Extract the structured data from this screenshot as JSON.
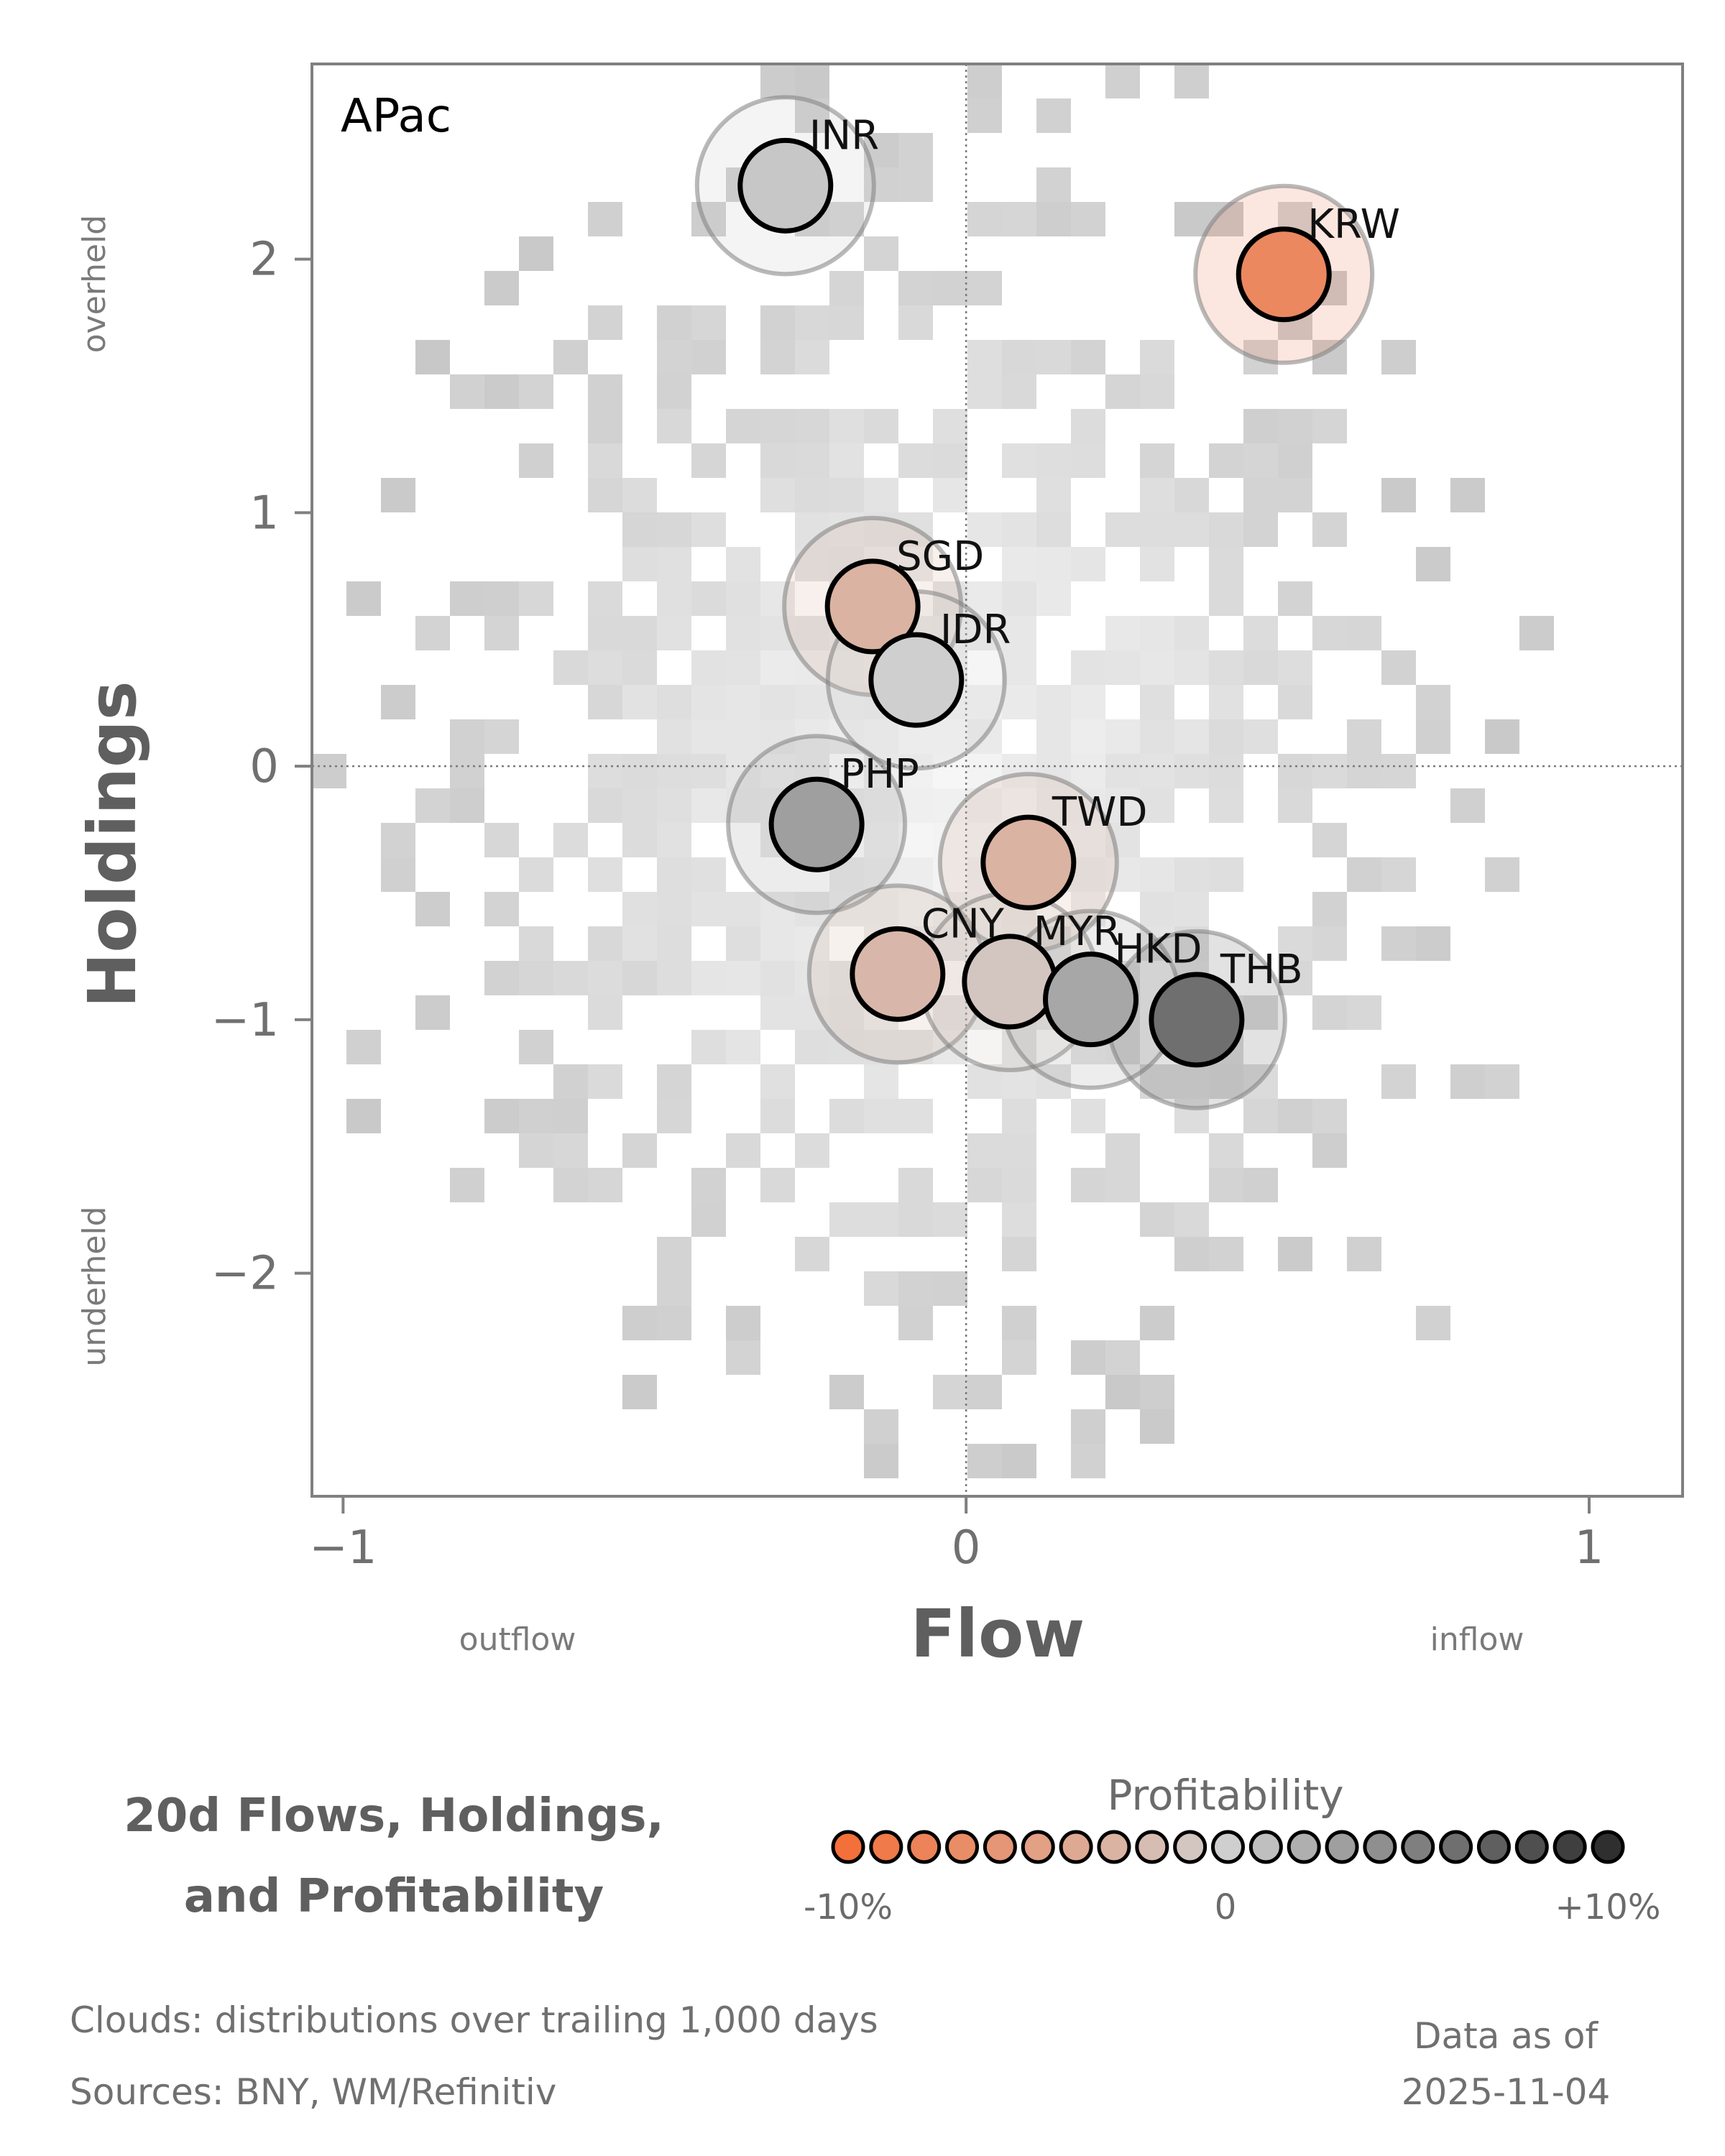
{
  "chart_data": {
    "type": "scatter",
    "region_label": "APac",
    "xlabel": "Flow",
    "ylabel": "Holdings",
    "xlim": [
      -1.05,
      1.15
    ],
    "ylim": [
      -2.88,
      2.77
    ],
    "xticks": [
      {
        "v": -1,
        "label": "−1"
      },
      {
        "v": 0,
        "label": "0"
      },
      {
        "v": 1,
        "label": "1"
      }
    ],
    "yticks": [
      {
        "v": 2,
        "label": "2"
      },
      {
        "v": 1,
        "label": "1"
      },
      {
        "v": 0,
        "label": "0"
      },
      {
        "v": -1,
        "label": "−1"
      },
      {
        "v": -2,
        "label": "−2"
      }
    ],
    "x_side_labels": {
      "left": "outflow",
      "right": "inflow"
    },
    "y_side_labels": {
      "top": "overheld",
      "bottom": "underheld"
    },
    "points": [
      {
        "label": "INR",
        "x": -0.29,
        "y": 2.29,
        "profitability": 0.5
      },
      {
        "label": "KRW",
        "x": 0.51,
        "y": 1.94,
        "profitability": -7.5
      },
      {
        "label": "SGD",
        "x": -0.15,
        "y": 0.63,
        "profitability": -3.0
      },
      {
        "label": "IDR",
        "x": -0.08,
        "y": 0.34,
        "profitability": 0.0
      },
      {
        "label": "PHP",
        "x": -0.24,
        "y": -0.23,
        "profitability": 3.0
      },
      {
        "label": "TWD",
        "x": 0.1,
        "y": -0.38,
        "profitability": -3.0
      },
      {
        "label": "CNY",
        "x": -0.11,
        "y": -0.82,
        "profitability": -2.5
      },
      {
        "label": "MYR",
        "x": 0.07,
        "y": -0.85,
        "profitability": -1.0
      },
      {
        "label": "HKD",
        "x": 0.2,
        "y": -0.92,
        "profitability": 2.5
      },
      {
        "label": "THB",
        "x": 0.37,
        "y": -1.0,
        "profitability": 6.0
      }
    ],
    "legend": {
      "title": "Profitability",
      "min_label": "-10%",
      "mid_label": "0",
      "max_label": "+10%",
      "range": [
        -10,
        10
      ]
    },
    "colors": {
      "negative": "#f4703a",
      "neutral": "#cfcfcf",
      "positive": "#2f2f2f"
    },
    "reference_lines": {
      "x": 0,
      "y": 0,
      "style": "dotted"
    }
  },
  "title": {
    "line1": "20d Flows, Holdings,",
    "line2": "and Profitability"
  },
  "footer": {
    "clouds": "Clouds:  distributions over trailing 1,000 days",
    "sources": "Sources:  BNY, WM/Refinitiv",
    "asof_label": "Data as of",
    "asof_date": "2025-11-04"
  }
}
